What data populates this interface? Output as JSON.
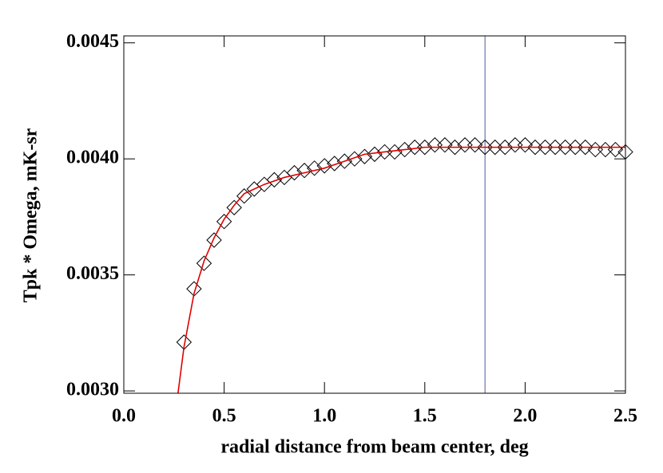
{
  "chart_data": {
    "type": "scatter",
    "xlabel": "radial distance from beam center, deg",
    "ylabel": "Tpk * Omega, mK-sr",
    "xlim": [
      0,
      2.5
    ],
    "ylim": [
      0.00299,
      0.00453
    ],
    "xticks": [
      {
        "value": 0,
        "label": "0.0"
      },
      0.5,
      {
        "value": 1,
        "label": "1.0"
      },
      1.5,
      {
        "value": 2,
        "label": "2.0"
      },
      2.5
    ],
    "yticks": [
      {
        "value": 0.003,
        "label": "0.0030"
      },
      0.0035,
      {
        "value": 0.004,
        "label": "0.0040"
      },
      0.0045
    ],
    "series": [
      {
        "marker": "diamond",
        "color": "#000000",
        "x": [
          0.3,
          0.35,
          0.4,
          0.45,
          0.5,
          0.55,
          0.6,
          0.65,
          0.7,
          0.75,
          0.8,
          0.85,
          0.9,
          0.95,
          1.0,
          1.05,
          1.1,
          1.15,
          1.2,
          1.25,
          1.3,
          1.35,
          1.4,
          1.45,
          1.5,
          1.55,
          1.6,
          1.65,
          1.7,
          1.75,
          1.8,
          1.85,
          1.9,
          1.95,
          2.0,
          2.05,
          2.1,
          2.15,
          2.2,
          2.25,
          2.3,
          2.35,
          2.4,
          2.45,
          2.5
        ],
        "values": [
          0.00321,
          0.00344,
          0.00355,
          0.00365,
          0.00373,
          0.00379,
          0.00384,
          0.00387,
          0.00389,
          0.00391,
          0.00392,
          0.00394,
          0.00395,
          0.00396,
          0.00397,
          0.00398,
          0.00399,
          0.004,
          0.00401,
          0.00402,
          0.00403,
          0.00403,
          0.00404,
          0.00405,
          0.00405,
          0.00406,
          0.00406,
          0.00405,
          0.00406,
          0.00406,
          0.00405,
          0.00405,
          0.00405,
          0.00406,
          0.00406,
          0.00405,
          0.00405,
          0.00405,
          0.00405,
          0.00405,
          0.00405,
          0.00404,
          0.00404,
          0.00404,
          0.00403
        ]
      },
      {
        "marker": "line",
        "color": "#e00000",
        "x": [
          0.27,
          0.3,
          0.35,
          0.4,
          0.45,
          0.5,
          0.55,
          0.6,
          0.65,
          0.7,
          0.8,
          0.9,
          1.0,
          1.1,
          1.2,
          1.3,
          1.4,
          1.5,
          2.0,
          2.5
        ],
        "values": [
          0.00299,
          0.00319,
          0.00342,
          0.00356,
          0.00366,
          0.00374,
          0.0038,
          0.00385,
          0.00387,
          0.00389,
          0.00392,
          0.00394,
          0.00396,
          0.00399,
          0.00402,
          0.00403,
          0.00404,
          0.00405,
          0.00405,
          0.00405
        ]
      }
    ],
    "vline": 1.8,
    "vline_color": "#4a5a9a"
  }
}
